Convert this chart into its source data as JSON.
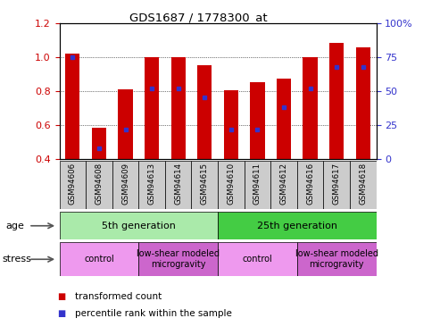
{
  "title": "GDS1687 / 1778300_at",
  "samples": [
    "GSM94606",
    "GSM94608",
    "GSM94609",
    "GSM94613",
    "GSM94614",
    "GSM94615",
    "GSM94610",
    "GSM94611",
    "GSM94612",
    "GSM94616",
    "GSM94617",
    "GSM94618"
  ],
  "red_values": [
    1.02,
    0.585,
    0.81,
    1.0,
    1.0,
    0.955,
    0.805,
    0.855,
    0.875,
    1.0,
    1.085,
    1.06
  ],
  "blue_fractions": [
    0.75,
    0.08,
    0.22,
    0.52,
    0.52,
    0.455,
    0.22,
    0.22,
    0.38,
    0.52,
    0.68,
    0.68
  ],
  "ylim_left": [
    0.4,
    1.2
  ],
  "ylim_right": [
    0,
    100
  ],
  "yticks_left": [
    0.4,
    0.6,
    0.8,
    1.0,
    1.2
  ],
  "yticks_right": [
    0,
    25,
    50,
    75,
    100
  ],
  "ytick_labels_right": [
    "0",
    "25",
    "50",
    "75",
    "100%"
  ],
  "bar_color": "#cc0000",
  "dot_color": "#3333cc",
  "baseline": 0.4,
  "age_groups": [
    {
      "label": "5th generation",
      "start": 0,
      "end": 6,
      "color": "#aaeaaa"
    },
    {
      "label": "25th generation",
      "start": 6,
      "end": 12,
      "color": "#44cc44"
    }
  ],
  "stress_groups": [
    {
      "label": "control",
      "start": 0,
      "end": 3,
      "color": "#ee99ee"
    },
    {
      "label": "low-shear modeled\nmicrogravity",
      "start": 3,
      "end": 6,
      "color": "#cc66cc"
    },
    {
      "label": "control",
      "start": 6,
      "end": 9,
      "color": "#ee99ee"
    },
    {
      "label": "low-shear modeled\nmicrogravity",
      "start": 9,
      "end": 12,
      "color": "#cc66cc"
    }
  ],
  "legend_items": [
    {
      "label": "transformed count",
      "color": "#cc0000"
    },
    {
      "label": "percentile rank within the sample",
      "color": "#3333cc"
    }
  ],
  "age_label": "age",
  "stress_label": "stress",
  "tick_label_color_left": "#cc0000",
  "tick_label_color_right": "#3333cc",
  "sample_box_color": "#cccccc",
  "fig_width": 4.93,
  "fig_height": 3.75,
  "fig_dpi": 100
}
